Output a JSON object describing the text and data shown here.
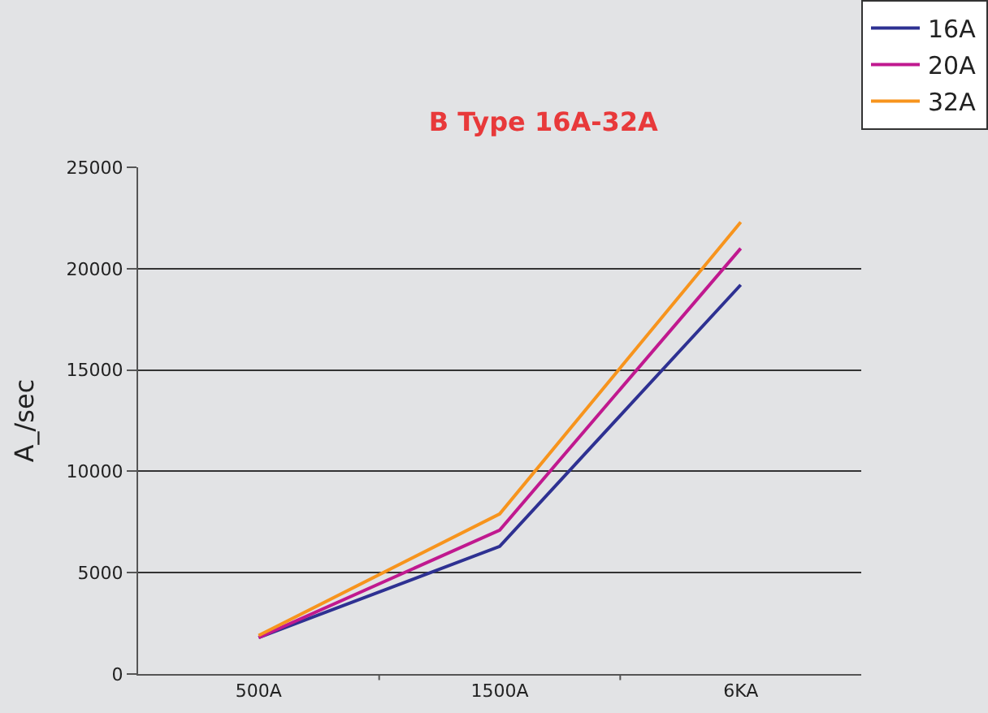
{
  "chart_data": {
    "type": "line",
    "title": "B Type 16A-32A",
    "ylabel": "A_/sec",
    "categories": [
      "500A",
      "1500A",
      "6KA"
    ],
    "series": [
      {
        "name": "16A",
        "color": "#2e3192",
        "values": [
          1800,
          6300,
          19200
        ]
      },
      {
        "name": "20A",
        "color": "#c0198f",
        "values": [
          1800,
          7100,
          21000
        ]
      },
      {
        "name": "32A",
        "color": "#f7941d",
        "values": [
          1900,
          7900,
          22300
        ]
      }
    ],
    "ylim": [
      0,
      25000
    ],
    "yticks": [
      0,
      5000,
      10000,
      15000,
      20000,
      25000
    ],
    "grid": "y",
    "legend": "top right",
    "marker": "none",
    "line_style": "solid"
  }
}
